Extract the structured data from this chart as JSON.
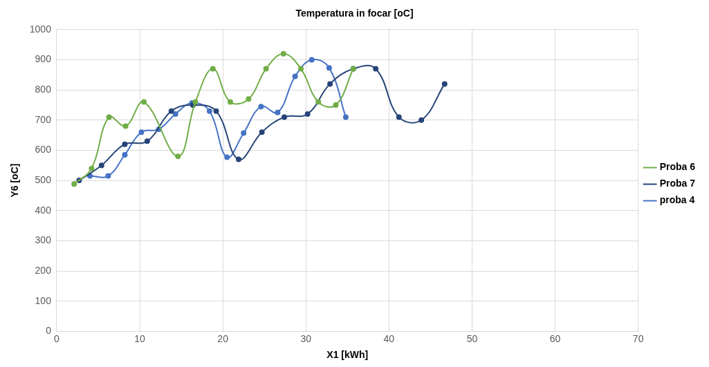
{
  "chart_data": {
    "type": "line",
    "title": "Temperatura in focar [oC]",
    "xlabel": "X1 [kWh]",
    "ylabel": "Y6 [oC]",
    "xlim": [
      0,
      70
    ],
    "xticks": [
      0,
      10,
      20,
      30,
      40,
      50,
      60,
      70
    ],
    "ylim": [
      0,
      1000
    ],
    "yticks": [
      0,
      100,
      200,
      300,
      400,
      500,
      600,
      700,
      800,
      900,
      1000
    ],
    "grid": true,
    "legend": "right",
    "marker": "circle",
    "line_style": "solid",
    "series": [
      {
        "name": "Proba 6",
        "color": "#70ad47",
        "x": [
          2.1,
          4.2,
          6.3,
          8.3,
          10.5,
          14.6,
          16.7,
          18.8,
          20.9,
          23.1,
          25.2,
          27.3,
          29.4,
          31.5,
          33.6,
          35.7
        ],
        "values": [
          488,
          540,
          710,
          680,
          760,
          580,
          760,
          870,
          760,
          770,
          870,
          920,
          870,
          760,
          750,
          870
        ]
      },
      {
        "name": "Proba 7",
        "color": "#264478",
        "x": [
          2.7,
          5.4,
          8.2,
          10.9,
          13.8,
          16.4,
          19.2,
          21.9,
          24.7,
          27.4,
          30.2,
          32.9,
          35.7,
          38.4,
          41.2,
          43.9,
          46.7
        ],
        "values": [
          500,
          550,
          620,
          630,
          730,
          750,
          730,
          570,
          660,
          710,
          720,
          820,
          870,
          870,
          710,
          700,
          820
        ]
      },
      {
        "name": "proba 4",
        "color": "#4472c4",
        "x": [
          4.0,
          6.2,
          8.2,
          10.2,
          12.3,
          14.3,
          16.3,
          18.4,
          20.5,
          22.5,
          24.6,
          26.6,
          28.7,
          30.7,
          32.8,
          34.8
        ],
        "values": [
          515,
          515,
          585,
          660,
          670,
          720,
          757,
          730,
          577,
          657,
          745,
          725,
          845,
          900,
          873,
          710
        ]
      }
    ]
  }
}
